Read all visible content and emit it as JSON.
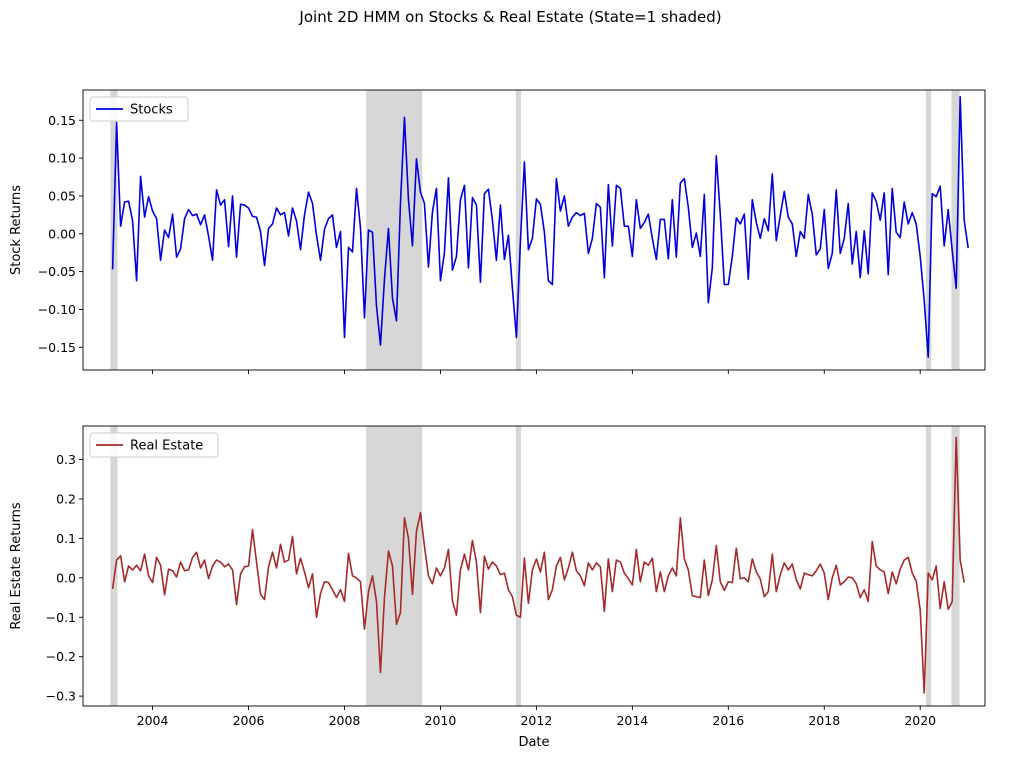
{
  "figure": {
    "title": "Joint 2D HMM on Stocks & Real Estate (State=1 shaded)"
  },
  "chart_data": [
    {
      "type": "line",
      "panel": "top",
      "ylabel": "Stock Returns",
      "xlabel": "",
      "legend": "top-left",
      "grid": false,
      "ylim": [
        -0.18,
        0.19
      ],
      "xlim": [
        2002.55,
        2021.35
      ],
      "x_ticks": [
        2004,
        2006,
        2008,
        2010,
        2012,
        2014,
        2016,
        2018,
        2020
      ],
      "y_ticks": [
        -0.15,
        -0.1,
        -0.05,
        0.0,
        0.05,
        0.1,
        0.15
      ],
      "y_tick_labels": [
        "−0.15",
        "−0.10",
        "−0.05",
        "0.00",
        "0.05",
        "0.10",
        "0.15"
      ],
      "series": [
        {
          "name": "Stocks",
          "color": "#0000dd",
          "x_start": 2003.167,
          "x_step": 0.08333,
          "values": [
            -0.047,
            0.147,
            0.01,
            0.042,
            0.043,
            0.017,
            -0.062,
            0.076,
            0.022,
            0.049,
            0.03,
            0.02,
            -0.035,
            0.005,
            -0.005,
            0.026,
            -0.031,
            -0.02,
            0.02,
            0.032,
            0.024,
            0.026,
            0.012,
            0.025,
            -0.003,
            -0.035,
            0.058,
            0.038,
            0.045,
            -0.017,
            0.05,
            -0.031,
            0.039,
            0.038,
            0.034,
            0.023,
            0.022,
            0.003,
            -0.042,
            0.007,
            0.013,
            0.034,
            0.025,
            0.028,
            -0.003,
            0.034,
            0.017,
            -0.021,
            0.025,
            0.055,
            0.04,
            -0.002,
            -0.035,
            0.006,
            0.02,
            0.025,
            -0.018,
            0.003,
            -0.137,
            -0.018,
            -0.024,
            0.06,
            0.008,
            -0.111,
            0.005,
            0.002,
            -0.095,
            -0.147,
            -0.06,
            0.007,
            -0.085,
            -0.115,
            0.04,
            0.154,
            0.045,
            -0.016,
            0.099,
            0.055,
            0.04,
            -0.044,
            0.029,
            0.06,
            -0.062,
            -0.025,
            0.074,
            -0.048,
            -0.03,
            0.045,
            0.064,
            -0.045,
            0.048,
            0.038,
            -0.064,
            0.053,
            0.059,
            0.018,
            -0.035,
            0.038,
            -0.034,
            -0.002,
            -0.072,
            -0.137,
            -0.01,
            0.095,
            -0.021,
            -0.006,
            0.046,
            0.039,
            0.002,
            -0.062,
            -0.067,
            0.073,
            0.03,
            0.05,
            0.01,
            0.022,
            0.028,
            0.024,
            0.027,
            -0.026,
            -0.006,
            0.04,
            0.035,
            -0.058,
            0.065,
            -0.016,
            0.064,
            0.06,
            0.01,
            0.01,
            -0.03,
            0.045,
            0.007,
            0.015,
            0.026,
            -0.006,
            -0.034,
            0.019,
            0.019,
            -0.033,
            0.045,
            -0.031,
            0.067,
            0.073,
            0.035,
            -0.018,
            0.001,
            -0.03,
            0.052,
            -0.091,
            -0.045,
            0.103,
            0.025,
            -0.067,
            -0.067,
            -0.03,
            0.021,
            0.013,
            0.026,
            -0.06,
            0.045,
            0.015,
            -0.006,
            0.02,
            0.004,
            0.079,
            -0.009,
            0.024,
            0.056,
            0.022,
            0.013,
            -0.03,
            0.003,
            -0.006,
            0.052,
            0.026,
            -0.028,
            -0.02,
            0.032,
            -0.046,
            -0.026,
            0.058,
            -0.026,
            -0.006,
            0.04,
            -0.04,
            0.003,
            -0.058,
            0.004,
            -0.053,
            0.054,
            0.043,
            0.018,
            0.054,
            -0.054,
            0.06,
            0.002,
            -0.005,
            0.042,
            0.013,
            0.028,
            0.013,
            -0.03,
            -0.088,
            -0.163,
            0.053,
            0.049,
            0.063,
            -0.016,
            0.032,
            -0.022,
            -0.072,
            0.181,
            0.018,
            -0.019
          ]
        }
      ],
      "shaded_state1_periods": [
        [
          2003.12,
          2003.27
        ],
        [
          2008.45,
          2009.62
        ],
        [
          2011.57,
          2011.68
        ],
        [
          2020.12,
          2020.23
        ],
        [
          2020.65,
          2020.82
        ]
      ]
    },
    {
      "type": "line",
      "panel": "bottom",
      "ylabel": "Real Estate Returns",
      "xlabel": "Date",
      "legend": "top-left",
      "grid": false,
      "ylim": [
        -0.325,
        0.385
      ],
      "xlim": [
        2002.55,
        2021.35
      ],
      "x_ticks": [
        2004,
        2006,
        2008,
        2010,
        2012,
        2014,
        2016,
        2018,
        2020
      ],
      "y_ticks": [
        -0.3,
        -0.2,
        -0.1,
        0.0,
        0.1,
        0.2,
        0.3
      ],
      "y_tick_labels": [
        "−0.3",
        "−0.2",
        "−0.1",
        "0.0",
        "0.1",
        "0.2",
        "0.3"
      ],
      "series": [
        {
          "name": "Real Estate",
          "color": "#a52a2a",
          "x_start": 2003.167,
          "x_step": 0.08333,
          "values": [
            -0.028,
            0.045,
            0.056,
            -0.01,
            0.03,
            0.02,
            0.032,
            0.018,
            0.06,
            0.005,
            -0.012,
            0.052,
            0.032,
            -0.043,
            0.022,
            0.018,
            0.002,
            0.04,
            0.018,
            0.02,
            0.052,
            0.065,
            0.025,
            0.045,
            -0.002,
            0.03,
            0.045,
            0.04,
            0.028,
            0.035,
            0.02,
            -0.068,
            0.01,
            0.028,
            0.03,
            0.122,
            0.04,
            -0.042,
            -0.055,
            0.028,
            0.065,
            0.025,
            0.085,
            0.04,
            0.045,
            0.105,
            0.01,
            0.05,
            0.015,
            -0.025,
            0.01,
            -0.1,
            -0.04,
            -0.01,
            -0.012,
            -0.03,
            -0.05,
            -0.03,
            -0.06,
            0.062,
            0.005,
            0.0,
            -0.01,
            -0.13,
            -0.035,
            0.005,
            -0.06,
            -0.24,
            -0.05,
            0.068,
            0.03,
            -0.118,
            -0.088,
            0.152,
            0.1,
            -0.042,
            0.118,
            0.165,
            0.08,
            0.005,
            -0.015,
            0.025,
            0.005,
            0.025,
            0.072,
            -0.058,
            -0.095,
            0.02,
            0.06,
            0.02,
            0.095,
            0.04,
            -0.088,
            0.055,
            0.022,
            0.04,
            0.03,
            0.008,
            0.012,
            -0.03,
            -0.048,
            -0.095,
            -0.1,
            0.05,
            -0.065,
            0.02,
            0.048,
            0.015,
            0.065,
            -0.055,
            -0.03,
            0.03,
            0.052,
            -0.005,
            0.025,
            0.065,
            0.018,
            0.005,
            -0.02,
            0.038,
            0.02,
            0.038,
            0.028,
            -0.085,
            0.048,
            -0.035,
            0.045,
            0.04,
            0.012,
            -0.002,
            -0.018,
            0.072,
            -0.01,
            0.04,
            0.032,
            0.05,
            -0.035,
            0.015,
            -0.035,
            0.005,
            0.025,
            0.005,
            0.152,
            0.048,
            0.02,
            -0.045,
            -0.048,
            -0.05,
            0.045,
            -0.045,
            -0.005,
            0.082,
            -0.01,
            -0.032,
            -0.01,
            -0.012,
            0.075,
            -0.002,
            0.0,
            -0.01,
            0.048,
            0.015,
            -0.003,
            -0.048,
            -0.035,
            0.06,
            -0.035,
            0.008,
            0.038,
            0.02,
            0.035,
            -0.005,
            -0.028,
            0.012,
            0.008,
            0.005,
            0.018,
            0.035,
            0.012,
            -0.055,
            0.0,
            0.032,
            -0.018,
            -0.01,
            0.002,
            0.0,
            -0.015,
            -0.05,
            -0.03,
            -0.06,
            0.092,
            0.03,
            0.02,
            0.015,
            -0.04,
            0.015,
            -0.015,
            0.022,
            0.045,
            0.052,
            0.012,
            -0.008,
            -0.082,
            -0.292,
            0.012,
            -0.005,
            0.03,
            -0.078,
            -0.01,
            -0.08,
            -0.06,
            0.356,
            0.045,
            -0.012
          ]
        }
      ],
      "shaded_state1_periods": [
        [
          2003.12,
          2003.27
        ],
        [
          2008.45,
          2009.62
        ],
        [
          2011.57,
          2011.68
        ],
        [
          2020.12,
          2020.23
        ],
        [
          2020.65,
          2020.82
        ]
      ]
    }
  ]
}
